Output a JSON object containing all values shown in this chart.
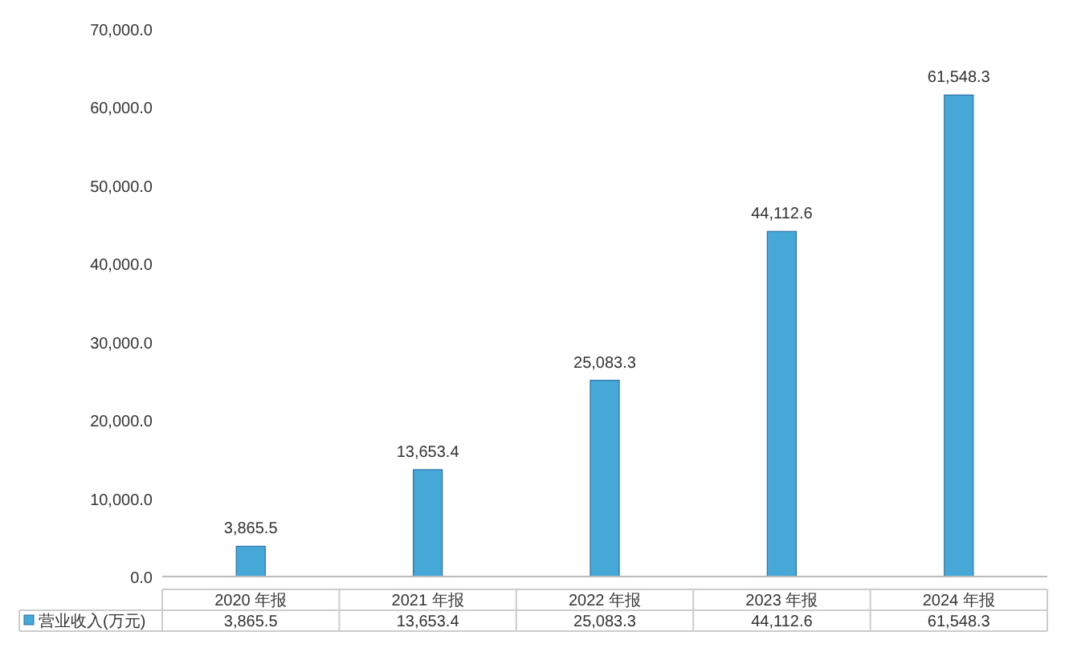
{
  "chart_data": {
    "type": "bar",
    "categories": [
      "2020 年报",
      "2021 年报",
      "2022 年报",
      "2023 年报",
      "2024 年报"
    ],
    "series": [
      {
        "name": "营业收入(万元)",
        "color": "#46a8d6",
        "values": [
          3865.5,
          13653.4,
          25083.3,
          44112.6,
          61548.3
        ],
        "value_labels": [
          "3,865.5",
          "13,653.4",
          "25,083.3",
          "44,112.6",
          "61,548.3"
        ]
      }
    ],
    "ylim": [
      0,
      70000
    ],
    "yticks": [
      {
        "value": 0,
        "label": "0.0"
      },
      {
        "value": 10000,
        "label": "10,000.0"
      },
      {
        "value": 20000,
        "label": "20,000.0"
      },
      {
        "value": 30000,
        "label": "30,000.0"
      },
      {
        "value": 40000,
        "label": "40,000.0"
      },
      {
        "value": 50000,
        "label": "50,000.0"
      },
      {
        "value": 60000,
        "label": "60,000.0"
      },
      {
        "value": 70000,
        "label": "70,000.0"
      }
    ],
    "legend": "bottom",
    "grid": false
  }
}
